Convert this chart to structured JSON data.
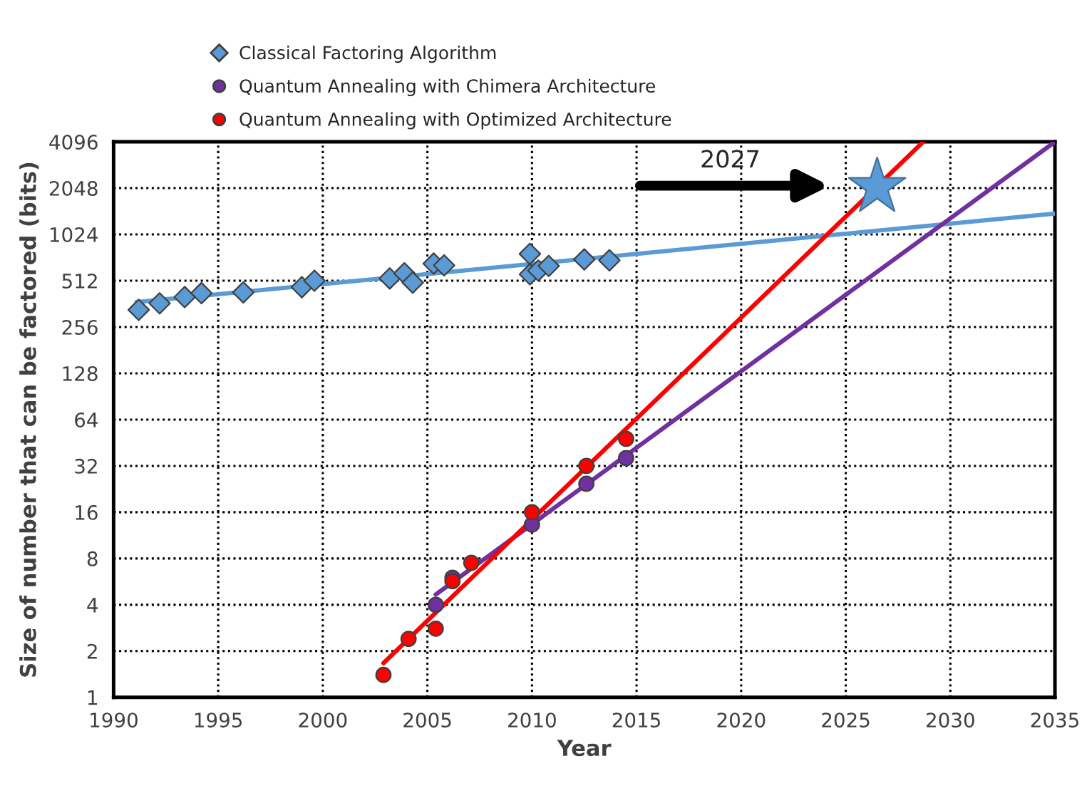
{
  "chart_data": {
    "type": "scatter",
    "xlabel": "Year",
    "ylabel": "Size of number that can be factored (bits)",
    "log": "y",
    "xlim": [
      1990,
      2035
    ],
    "xticks": [
      1990,
      1995,
      2000,
      2005,
      2010,
      2015,
      2020,
      2025,
      2030,
      2035
    ],
    "ylim": [
      1,
      4096
    ],
    "yticks": [
      1,
      2,
      4,
      8,
      16,
      32,
      64,
      128,
      256,
      512,
      1024,
      2048,
      4096
    ],
    "grid": true,
    "legend": "top left",
    "series": [
      {
        "name": "Classical Factoring Algorithm",
        "color": "#5b9bd5",
        "marker": "diamond",
        "x": [
          1991.2,
          1992.2,
          1993.4,
          1994.2,
          1996.2,
          1999.0,
          1999.6,
          2003.2,
          2003.9,
          2004.3,
          2005.3,
          2005.8,
          2009.9,
          2009.9,
          2010.3,
          2010.8,
          2012.5,
          2013.7
        ],
        "values": [
          331,
          365,
          401,
          425,
          430,
          465,
          512,
          530,
          572,
          498,
          662,
          644,
          765,
          564,
          596,
          639,
          704,
          695
        ]
      },
      {
        "name": "Quantum Annealing with Chimera Architecture",
        "color": "#7030a0",
        "marker": "circle",
        "x": [
          2005.4,
          2006.2,
          2010.0,
          2012.6,
          2014.5
        ],
        "values": [
          4,
          6,
          13.3,
          24.5,
          36
        ]
      },
      {
        "name": "Quantum Annealing with Optimized Architecture",
        "color": "#ff0000",
        "marker": "circle",
        "x": [
          2002.9,
          2004.1,
          2005.4,
          2006.2,
          2007.1,
          2010.0,
          2012.6,
          2014.5
        ],
        "values": [
          1.4,
          2.4,
          2.8,
          5.7,
          7.5,
          16,
          32,
          48
        ]
      },
      {
        "type": "line",
        "color": "#5b9bd5",
        "x": [
          1991.1,
          2035
        ],
        "values": [
          372,
          1400
        ]
      },
      {
        "type": "line",
        "color": "#7030a0",
        "x": [
          2005.4,
          2035
        ],
        "values": [
          4.66,
          4096
        ]
      },
      {
        "type": "line",
        "color": "#ff0000",
        "x": [
          2002.9,
          2028.7
        ],
        "values": [
          1.67,
          4096
        ]
      },
      {
        "color": "#5b9bd5",
        "marker": "star",
        "x": [
          2026.5
        ],
        "values": [
          2080
        ]
      }
    ],
    "annotations": [
      "2027"
    ]
  }
}
